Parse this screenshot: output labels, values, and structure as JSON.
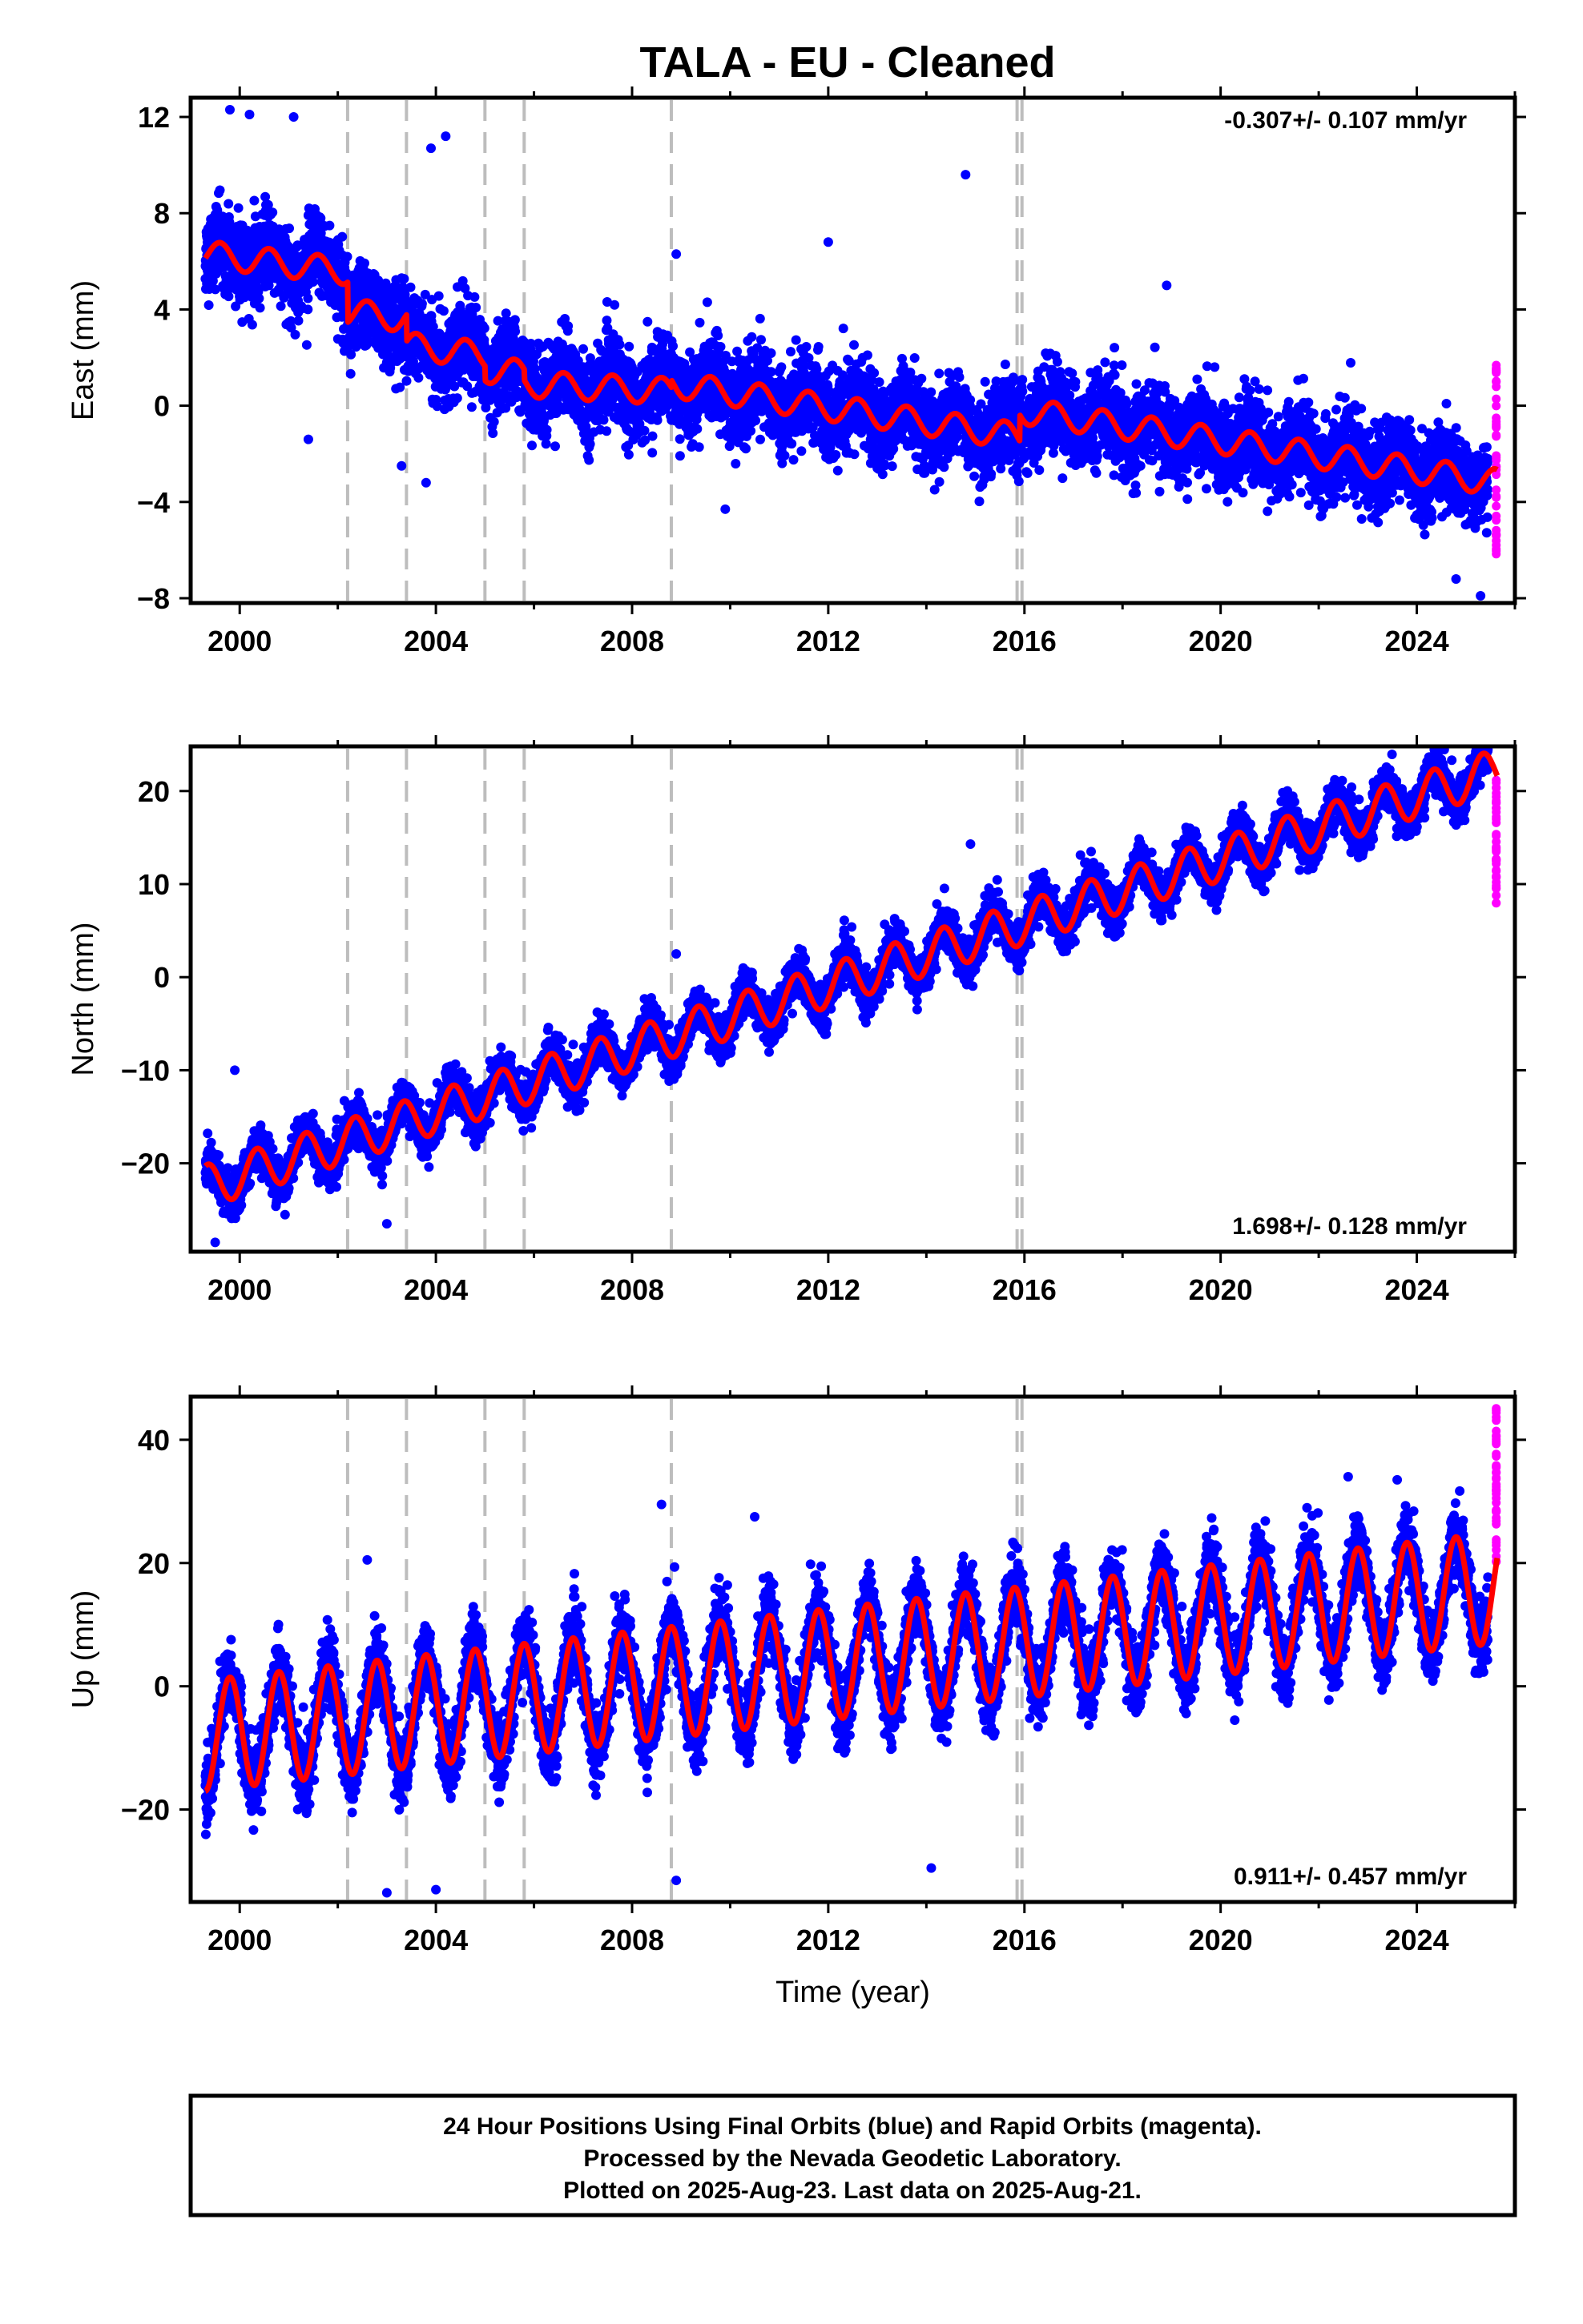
{
  "title": "TALA  - EU - Cleaned",
  "colors": {
    "final_orbits": "#0000ff",
    "rapid_orbits": "#ff00ff",
    "model": "#ff0000",
    "offsets": "#bdbdbd"
  },
  "chart_data": [
    {
      "type": "scatter",
      "component": "east",
      "ylabel": "East (mm)",
      "xlabel": "",
      "xlim": [
        1999.0,
        2026.0
      ],
      "ylim": [
        -8.2,
        12.8
      ],
      "xticks": [
        2000,
        2004,
        2008,
        2012,
        2016,
        2020,
        2024
      ],
      "yticks": [
        -8,
        -4,
        0,
        4,
        8,
        12
      ],
      "rate_text": "-0.307+/- 0.107 mm/yr",
      "rate_position": "top-right",
      "data_start": 1999.3,
      "data_end": 2025.64,
      "rapid_start": 2025.45,
      "offset_epochs": [
        2002.2,
        2003.4,
        2005.0,
        2005.8,
        2008.8,
        2015.85,
        2015.95
      ],
      "model": {
        "segments": [
          {
            "start": 1999.3,
            "value": 6.3,
            "rate": -0.25
          },
          {
            "start": 2002.2,
            "value": 3.9,
            "rate": -0.25
          },
          {
            "start": 2003.4,
            "value": 2.5,
            "rate": -0.25
          },
          {
            "start": 2005.0,
            "value": 1.5,
            "rate": -0.2
          },
          {
            "start": 2005.8,
            "value": 0.9,
            "rate": -0.1
          },
          {
            "start": 2008.8,
            "value": 0.9,
            "rate": -0.307
          },
          {
            "start": 2015.9,
            "value": -0.2,
            "rate": -0.307
          }
        ],
        "annual_amplitude": 0.55,
        "annual_phase": 0.35
      },
      "scatter_noise": 1.5,
      "outliers": [
        {
          "x": 1999.8,
          "y": 12.3
        },
        {
          "x": 2000.2,
          "y": 12.1
        },
        {
          "x": 2001.1,
          "y": 12.0
        },
        {
          "x": 2003.9,
          "y": 10.7
        },
        {
          "x": 2004.2,
          "y": 11.2
        },
        {
          "x": 2014.8,
          "y": 9.6
        },
        {
          "x": 2008.9,
          "y": 6.3
        },
        {
          "x": 2012.0,
          "y": 6.8
        },
        {
          "x": 2018.9,
          "y": 5.0
        },
        {
          "x": 2001.4,
          "y": -1.4
        },
        {
          "x": 2003.3,
          "y": -2.5
        },
        {
          "x": 2003.8,
          "y": -3.2
        },
        {
          "x": 2009.9,
          "y": -4.3
        },
        {
          "x": 2024.8,
          "y": -7.2
        },
        {
          "x": 2025.3,
          "y": -7.9
        }
      ],
      "rapid_range": [
        -6.3,
        1.7
      ]
    },
    {
      "type": "scatter",
      "component": "north",
      "ylabel": "North (mm)",
      "xlabel": "",
      "xlim": [
        1999.0,
        2026.0
      ],
      "ylim": [
        -29.5,
        24.8
      ],
      "xticks": [
        2000,
        2004,
        2008,
        2012,
        2016,
        2020,
        2024
      ],
      "yticks": [
        -20,
        -10,
        0,
        10,
        20
      ],
      "rate_text": "1.698+/- 0.128 mm/yr",
      "rate_position": "bottom-right",
      "data_start": 1999.3,
      "data_end": 2025.64,
      "rapid_start": 2025.45,
      "offset_epochs": [
        2002.2,
        2003.4,
        2005.0,
        2005.8,
        2008.8,
        2015.85,
        2015.95
      ],
      "model": {
        "segments": [
          {
            "start": 1999.3,
            "value": -22.5,
            "rate": 1.698
          }
        ],
        "annual_amplitude": 2.3,
        "annual_phase": 0.1
      },
      "scatter_noise": 2.0,
      "outliers": [
        {
          "x": 1999.5,
          "y": -28.5
        },
        {
          "x": 1999.9,
          "y": -10.0
        },
        {
          "x": 2003.0,
          "y": -26.5
        },
        {
          "x": 2008.9,
          "y": 2.5
        },
        {
          "x": 2014.9,
          "y": 14.3
        },
        {
          "x": 2016.3,
          "y": 11.0
        }
      ],
      "rapid_range": [
        7.7,
        21.9
      ]
    },
    {
      "type": "scatter",
      "component": "up",
      "ylabel": "Up (mm)",
      "xlabel": "Time (year)",
      "xlim": [
        1999.0,
        2026.0
      ],
      "ylim": [
        -35.0,
        47.0
      ],
      "xticks": [
        2000,
        2004,
        2008,
        2012,
        2016,
        2020,
        2024
      ],
      "yticks": [
        -20,
        0,
        20,
        40
      ],
      "rate_text": "0.911+/- 0.457 mm/yr",
      "rate_position": "bottom-right",
      "data_start": 1999.3,
      "data_end": 2025.64,
      "rapid_start": 2025.45,
      "offset_epochs": [
        2002.2,
        2003.4,
        2005.0,
        2005.8,
        2008.8,
        2015.85,
        2015.95
      ],
      "model": {
        "segments": [
          {
            "start": 1999.3,
            "value": -8.0,
            "rate": 0.911
          }
        ],
        "annual_amplitude": 9.0,
        "annual_phase": 0.55
      },
      "scatter_noise": 5.0,
      "outliers": [
        {
          "x": 2002.6,
          "y": 20.5
        },
        {
          "x": 2008.6,
          "y": 29.5
        },
        {
          "x": 2003.0,
          "y": -33.5
        },
        {
          "x": 2004.0,
          "y": -33.0
        },
        {
          "x": 2008.9,
          "y": -31.5
        },
        {
          "x": 2014.1,
          "y": -29.5
        },
        {
          "x": 2010.5,
          "y": 27.5
        },
        {
          "x": 2022.6,
          "y": 34.0
        },
        {
          "x": 2023.6,
          "y": 33.5
        }
      ],
      "rapid_range": [
        19.0,
        45.5
      ]
    }
  ],
  "footer": {
    "line1": "24 Hour Positions Using Final Orbits (blue) and Rapid Orbits (magenta).",
    "line2": "Processed by the Nevada Geodetic Laboratory.",
    "line3": "Plotted on 2025-Aug-23. Last data on 2025-Aug-21."
  }
}
